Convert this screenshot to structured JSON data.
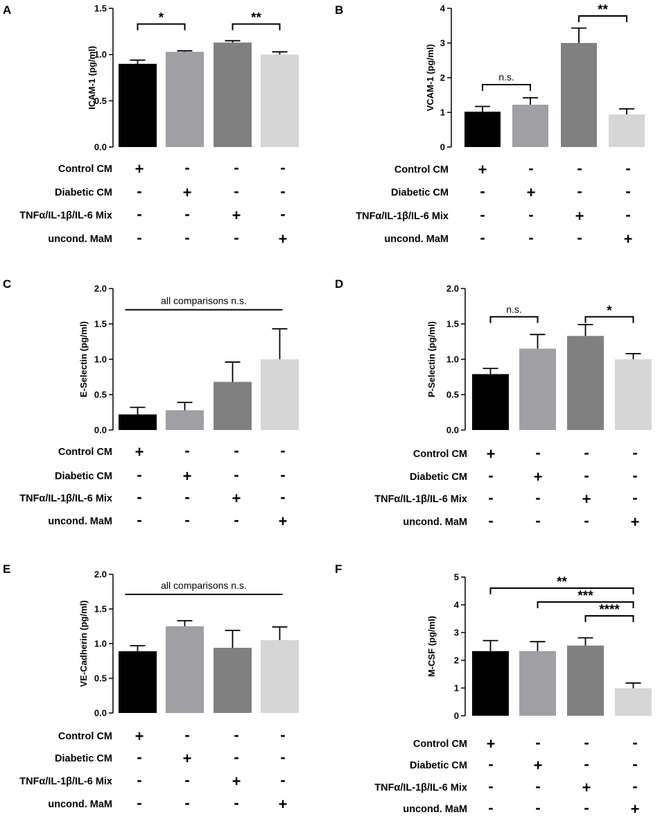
{
  "chart_data": [
    {
      "type": "bar",
      "panel": "A",
      "ylabel": "ICAM-1 (pg/ml)",
      "ylim": [
        0,
        1.5
      ],
      "yticks": [
        "0.0",
        "0.5",
        "1.0",
        "1.5"
      ],
      "values": [
        0.9,
        1.03,
        1.13,
        1.0
      ],
      "errors": [
        0.04,
        0.01,
        0.02,
        0.03
      ],
      "colors": [
        "#000000",
        "#a0a0a4",
        "#808080",
        "#d6d6d6"
      ],
      "rows": [
        {
          "label": "Control CM",
          "signs": [
            "+",
            "-",
            "-",
            "-"
          ]
        },
        {
          "label": "Diabetic CM",
          "signs": [
            "-",
            "+",
            "-",
            "-"
          ]
        },
        {
          "label": "TNFα/IL-1β/IL-6 Mix",
          "signs": [
            "-",
            "-",
            "+",
            "-"
          ]
        },
        {
          "label": "uncond. MaM",
          "signs": [
            "-",
            "-",
            "-",
            "+"
          ]
        }
      ],
      "brackets": [
        {
          "from": 0,
          "to": 1,
          "level": 1.33,
          "label": "*"
        },
        {
          "from": 2,
          "to": 3,
          "level": 1.33,
          "label": "**"
        }
      ]
    },
    {
      "type": "bar",
      "panel": "B",
      "ylabel": "VCAM-1  (pg/ml)",
      "ylim": [
        0,
        4
      ],
      "yticks": [
        "0",
        "1",
        "2",
        "3",
        "4"
      ],
      "values": [
        1.02,
        1.22,
        3.0,
        0.94
      ],
      "errors": [
        0.15,
        0.2,
        0.43,
        0.16
      ],
      "colors": [
        "#000000",
        "#a0a0a4",
        "#808080",
        "#d6d6d6"
      ],
      "rows": [
        {
          "label": "Control CM",
          "signs": [
            "+",
            "-",
            "-",
            "-"
          ]
        },
        {
          "label": "Diabetic CM",
          "signs": [
            "-",
            "+",
            "-",
            "-"
          ]
        },
        {
          "label": "TNFα/IL-1β/IL-6 Mix",
          "signs": [
            "-",
            "-",
            "+",
            "-"
          ]
        },
        {
          "label": "uncond. MaM",
          "signs": [
            "-",
            "-",
            "-",
            "+"
          ]
        }
      ],
      "brackets": [
        {
          "from": 0,
          "to": 1,
          "level": 1.8,
          "label": "n.s."
        },
        {
          "from": 2,
          "to": 3,
          "level": 3.78,
          "label": "**"
        }
      ]
    },
    {
      "type": "bar",
      "panel": "C",
      "ylabel": "E-Selectin (pg/ml)",
      "ylim": [
        0,
        2.0
      ],
      "yticks": [
        "0.0",
        "0.5",
        "1.0",
        "1.5",
        "2.0"
      ],
      "values": [
        0.22,
        0.28,
        0.68,
        1.0
      ],
      "errors": [
        0.1,
        0.11,
        0.28,
        0.43
      ],
      "colors": [
        "#000000",
        "#a0a0a4",
        "#808080",
        "#d6d6d6"
      ],
      "rows": [
        {
          "label": "Control CM",
          "signs": [
            "+",
            "-",
            "-",
            "-"
          ]
        },
        {
          "label": "Diabetic CM",
          "signs": [
            "-",
            "+",
            "-",
            "-"
          ]
        },
        {
          "label": "TNFα/IL-1β/IL-6 Mix",
          "signs": [
            "-",
            "-",
            "+",
            "-"
          ]
        },
        {
          "label": "uncond. MaM",
          "signs": [
            "-",
            "-",
            "-",
            "+"
          ]
        }
      ],
      "lines": [
        {
          "from": 0,
          "to": 3,
          "level": 1.7,
          "label": "all comparisons n.s."
        }
      ]
    },
    {
      "type": "bar",
      "panel": "D",
      "ylabel": "P-Selectin (pg/ml)",
      "ylim": [
        0,
        2.0
      ],
      "yticks": [
        "0.0",
        "0.5",
        "1.0",
        "1.5",
        "2.0"
      ],
      "values": [
        0.79,
        1.15,
        1.33,
        1.0
      ],
      "errors": [
        0.08,
        0.2,
        0.16,
        0.08
      ],
      "colors": [
        "#000000",
        "#a0a0a4",
        "#808080",
        "#d6d6d6"
      ],
      "rows": [
        {
          "label": "Control CM",
          "signs": [
            "+",
            "-",
            "-",
            "-"
          ]
        },
        {
          "label": "Diabetic CM",
          "signs": [
            "-",
            "+",
            "-",
            "-"
          ]
        },
        {
          "label": "TNFα/IL-1β/IL-6 Mix",
          "signs": [
            "-",
            "-",
            "+",
            "-"
          ]
        },
        {
          "label": "uncond. MaM",
          "signs": [
            "-",
            "-",
            "-",
            "+"
          ]
        }
      ],
      "brackets": [
        {
          "from": 0,
          "to": 1,
          "level": 1.6,
          "label": "n.s."
        },
        {
          "from": 2,
          "to": 3,
          "level": 1.6,
          "label": "*"
        }
      ]
    },
    {
      "type": "bar",
      "panel": "E",
      "ylabel": "VE-Cadherin (pg/ml)",
      "ylim": [
        0,
        2.0
      ],
      "yticks": [
        "0.0",
        "0.5",
        "1.0",
        "1.5",
        "2.0"
      ],
      "values": [
        0.89,
        1.25,
        0.94,
        1.05
      ],
      "errors": [
        0.08,
        0.08,
        0.25,
        0.19
      ],
      "colors": [
        "#000000",
        "#a0a0a4",
        "#808080",
        "#d6d6d6"
      ],
      "rows": [
        {
          "label": "Control CM",
          "signs": [
            "+",
            "-",
            "-",
            "-"
          ]
        },
        {
          "label": "Diabetic CM",
          "signs": [
            "-",
            "+",
            "-",
            "-"
          ]
        },
        {
          "label": "TNFα/IL-1β/IL-6 Mix",
          "signs": [
            "-",
            "-",
            "+",
            "-"
          ]
        },
        {
          "label": "uncond. MaM",
          "signs": [
            "-",
            "-",
            "-",
            "+"
          ]
        }
      ],
      "lines": [
        {
          "from": 0,
          "to": 3,
          "level": 1.71,
          "label": "all comparisons n.s."
        }
      ]
    },
    {
      "type": "bar",
      "panel": "F",
      "ylabel": "M-CSF (pg/ml)",
      "ylim": [
        0,
        5
      ],
      "yticks": [
        "0",
        "1",
        "2",
        "3",
        "4",
        "5"
      ],
      "values": [
        2.33,
        2.33,
        2.53,
        0.99
      ],
      "errors": [
        0.38,
        0.34,
        0.28,
        0.19
      ],
      "colors": [
        "#000000",
        "#a0a0a4",
        "#808080",
        "#d6d6d6"
      ],
      "rows": [
        {
          "label": "Control CM",
          "signs": [
            "+",
            "-",
            "-",
            "-"
          ]
        },
        {
          "label": "Diabetic CM",
          "signs": [
            "-",
            "+",
            "-",
            "-"
          ]
        },
        {
          "label": "TNFα/IL-1β/IL-6 Mix",
          "signs": [
            "-",
            "-",
            "+",
            "-"
          ]
        },
        {
          "label": "uncond. MaM",
          "signs": [
            "-",
            "-",
            "-",
            "+"
          ]
        }
      ],
      "brackets": [
        {
          "from": 0,
          "to": 3,
          "level": 4.6,
          "label": "**"
        },
        {
          "from": 1,
          "to": 3,
          "level": 4.1,
          "label": "***"
        },
        {
          "from": 2,
          "to": 3,
          "level": 3.6,
          "label": "****"
        }
      ]
    }
  ]
}
